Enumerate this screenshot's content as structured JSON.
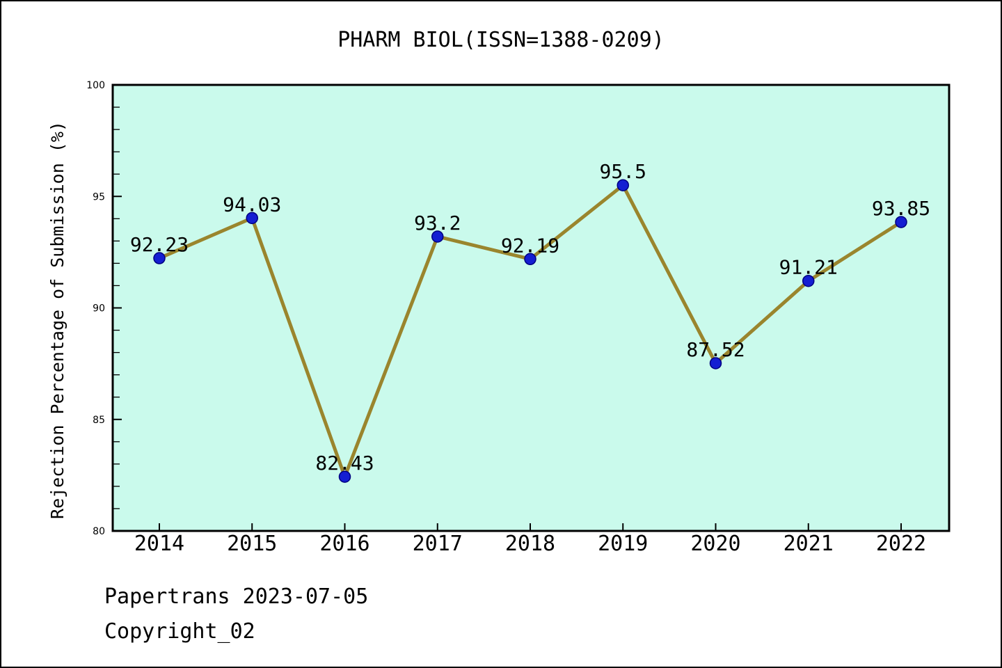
{
  "title": "PHARM BIOL(ISSN=1388-0209)",
  "footer": {
    "line1": "Papertrans 2023-07-05",
    "line2": "Copyright_02"
  },
  "chart_data": {
    "type": "line",
    "title": "PHARM BIOL(ISSN=1388-0209)",
    "x": [
      2014,
      2015,
      2016,
      2017,
      2018,
      2019,
      2020,
      2021,
      2022
    ],
    "values": [
      92.23,
      94.03,
      82.43,
      93.2,
      92.19,
      95.5,
      87.52,
      91.21,
      93.85
    ],
    "data_labels": [
      "92.23",
      "94.03",
      "82.43",
      "93.2",
      "92.19",
      "95.5",
      "87.52",
      "91.21",
      "93.85"
    ],
    "xlabel": "",
    "ylabel": "Rejection Percentage of Submission (%)",
    "ylim": [
      80,
      100
    ],
    "yticks_major": [
      80,
      85,
      90,
      95,
      100
    ],
    "ytick_minor_step": 1,
    "grid": false,
    "legend": "none",
    "plot_bg": "#cafaec",
    "line_color": "#9a852d",
    "marker_color": "#141ed2",
    "marker_edge": "#000080",
    "axis_color": "#000000",
    "label_color": "#000000"
  }
}
